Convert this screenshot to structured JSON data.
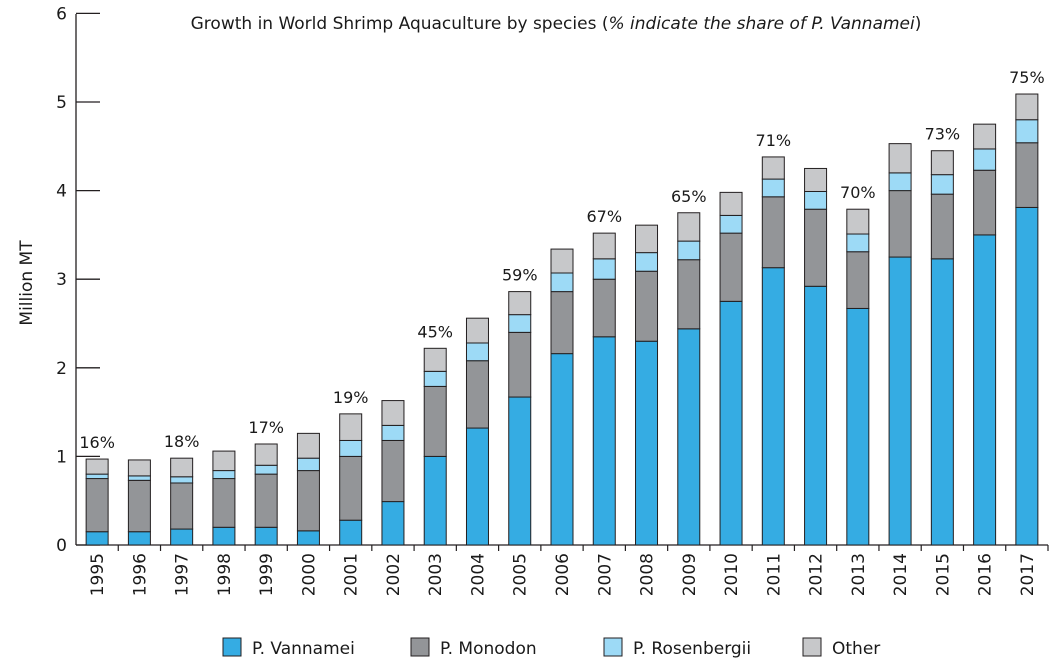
{
  "colors": {
    "P. Vannamei": "#35ACE3",
    "P. Monodon": "#939598",
    "P. Rosenbergii": "#9DDAF6",
    "Other": "#C7C8CA",
    "stroke": "#231F20"
  },
  "chart_data": {
    "type": "bar",
    "stacked": true,
    "title_main": "Growth in World Shrimp Aquaculture by species (",
    "title_italic": "% indicate the share of P. Vannamei",
    "title_end": ")",
    "xlabel": "",
    "ylabel": "Million MT",
    "ylim": [
      0,
      6
    ],
    "yticks": [
      "0",
      "1",
      "2",
      "3",
      "4",
      "5",
      "6"
    ],
    "legend_position": "bottom",
    "categories": [
      "1995",
      "1996",
      "1997",
      "1998",
      "1999",
      "2000",
      "2001",
      "2002",
      "2003",
      "2004",
      "2005",
      "2006",
      "2007",
      "2008",
      "2009",
      "2010",
      "2011",
      "2012",
      "2013",
      "2014",
      "2015",
      "2016",
      "2017"
    ],
    "series": [
      {
        "name": "P. Vannamei",
        "values": [
          0.15,
          0.15,
          0.18,
          0.2,
          0.2,
          0.16,
          0.28,
          0.49,
          1.0,
          1.32,
          1.67,
          2.16,
          2.35,
          2.3,
          2.44,
          2.75,
          3.13,
          2.92,
          2.67,
          3.25,
          3.23,
          3.5,
          3.81
        ]
      },
      {
        "name": "P. Monodon",
        "values": [
          0.6,
          0.58,
          0.52,
          0.55,
          0.6,
          0.68,
          0.72,
          0.69,
          0.79,
          0.76,
          0.73,
          0.7,
          0.65,
          0.79,
          0.78,
          0.77,
          0.8,
          0.87,
          0.64,
          0.75,
          0.73,
          0.73,
          0.73
        ]
      },
      {
        "name": "P. Rosenbergii",
        "values": [
          0.05,
          0.05,
          0.07,
          0.09,
          0.1,
          0.14,
          0.18,
          0.17,
          0.17,
          0.2,
          0.2,
          0.21,
          0.23,
          0.21,
          0.21,
          0.2,
          0.2,
          0.2,
          0.2,
          0.2,
          0.22,
          0.24,
          0.26
        ]
      },
      {
        "name": "Other",
        "values": [
          0.17,
          0.18,
          0.21,
          0.22,
          0.24,
          0.28,
          0.3,
          0.28,
          0.26,
          0.28,
          0.26,
          0.27,
          0.29,
          0.31,
          0.32,
          0.26,
          0.25,
          0.26,
          0.28,
          0.33,
          0.27,
          0.28,
          0.29
        ]
      }
    ],
    "share_labels": {
      "1995": "16%",
      "1997": "18%",
      "1999": "17%",
      "2001": "19%",
      "2003": "45%",
      "2005": "59%",
      "2007": "67%",
      "2009": "65%",
      "2011": "71%",
      "2013": "70%",
      "2015": "73%",
      "2017": "75%"
    }
  }
}
